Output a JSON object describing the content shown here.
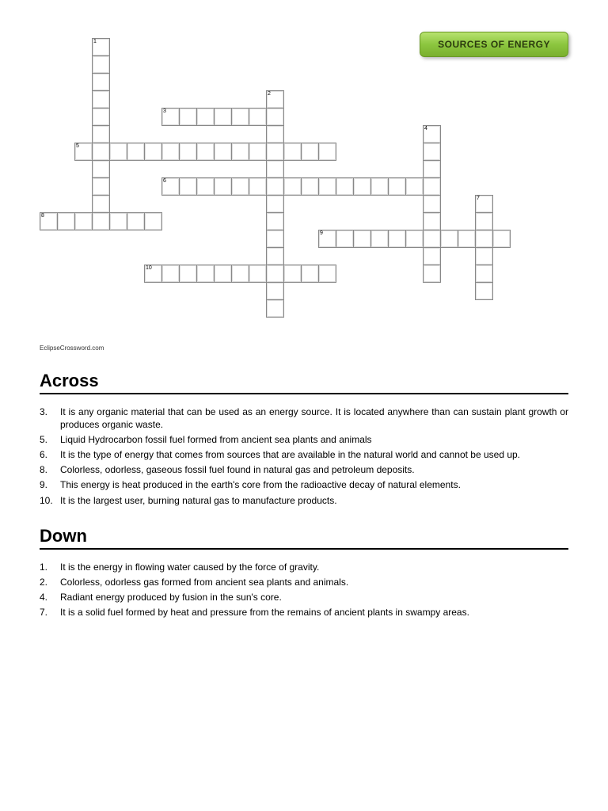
{
  "title_badge": "SOURCES OF ENERGY",
  "credit": "EclipseCrossword.com",
  "grid": {
    "cell_size": 22,
    "rows": 17,
    "cols": 27,
    "layout": [
      "...X.......................",
      "...X.......................",
      "...X.......................",
      "...X.........X.............",
      "...X...XXXXXXX.............",
      "...X.........X........X....",
      "..XXXXXXXXXXXXXXX.....X....",
      "...X.........X........X....",
      "...X...XXXXXXXXXXXXXXXX....",
      "...X.........X........X..X.",
      "XXXXXXX......X........X..X.",
      ".............X..XXXXXXXXXXX",
      ".............X........X..X.",
      "......XXXXXXXXXXX.....X..X.",
      ".............X...........X.",
      ".............X.............",
      "..........................."
    ],
    "numbers": {
      "1": [
        0,
        3
      ],
      "2": [
        3,
        13
      ],
      "3": [
        4,
        7
      ],
      "4": [
        5,
        22
      ],
      "5": [
        6,
        2
      ],
      "6": [
        8,
        7
      ],
      "7": [
        9,
        25
      ],
      "8": [
        10,
        0
      ],
      "9": [
        11,
        16
      ],
      "10": [
        13,
        6
      ]
    }
  },
  "sections": {
    "across": {
      "heading": "Across",
      "clues": [
        {
          "n": "3.",
          "t": "It is any organic material that can be used as an energy source. It is located anywhere than can sustain plant growth or produces organic waste."
        },
        {
          "n": "5.",
          "t": "Liquid Hydrocarbon fossil fuel formed from ancient sea plants and animals"
        },
        {
          "n": "6.",
          "t": "It is the type of energy that comes from sources that are available in the natural world and cannot be used up."
        },
        {
          "n": "8.",
          "t": "Colorless, odorless, gaseous fossil fuel found in natural gas and petroleum deposits."
        },
        {
          "n": "9.",
          "t": "This energy is heat produced in the earth's core from the radioactive decay of natural elements."
        },
        {
          "n": "10.",
          "t": "It is the largest user, burning natural gas to manufacture products."
        }
      ]
    },
    "down": {
      "heading": "Down",
      "clues": [
        {
          "n": "1.",
          "t": "It is the energy in flowing water caused by the force of gravity."
        },
        {
          "n": "2.",
          "t": "Colorless, odorless gas formed from ancient sea plants and animals."
        },
        {
          "n": "4.",
          "t": "Radiant energy produced by fusion in the sun's core."
        },
        {
          "n": "7.",
          "t": "It is a solid fuel formed by heat and pressure from the remains of ancient plants in swampy areas."
        }
      ]
    }
  }
}
